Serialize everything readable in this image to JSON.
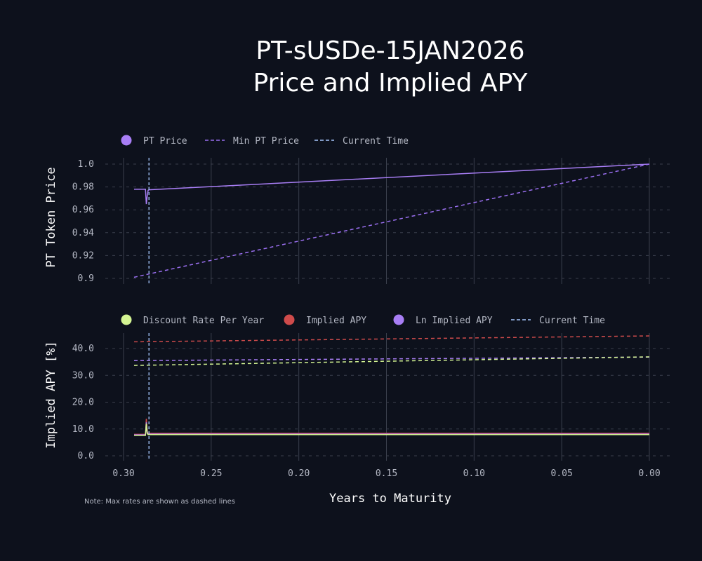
{
  "title_line1": "PT-sUSDe-15JAN2026",
  "title_line2": "Price and Implied APY",
  "note": "Note: Max rates are shown as dashed lines",
  "colors": {
    "background": "#0d111c",
    "pt_price": "#a87ef5",
    "min_pt_price": "#9a6ff0",
    "current_time": "#a8c8ff",
    "discount": "#d4f593",
    "implied": "#cf4b4b",
    "ln_implied": "#a87ef5",
    "grid": "#3a3f4c"
  },
  "chart_data": [
    {
      "type": "line",
      "ylabel": "PT Token Price",
      "xlim": [
        0.3,
        0.0
      ],
      "ylim": [
        0.9,
        1.0
      ],
      "x_ticks": [
        "0.30",
        "0.25",
        "0.20",
        "0.15",
        "0.10",
        "0.05",
        "0.00"
      ],
      "y_ticks": [
        "1.0",
        "0.98",
        "0.96",
        "0.94",
        "0.92",
        "0.9"
      ],
      "grid": true,
      "legend": [
        "PT Price",
        "Min PT Price",
        "Current Time"
      ],
      "legend_placement": "top-left",
      "current_time": 0.2855,
      "series": [
        {
          "name": "PT Price",
          "style": "solid",
          "x": [
            0.294,
            0.2875,
            0.287,
            0.2865,
            0.286,
            0.2855,
            0.0
          ],
          "y": [
            0.978,
            0.978,
            0.965,
            0.972,
            0.977,
            0.9775,
            1.0
          ]
        },
        {
          "name": "Min PT Price",
          "style": "dashed",
          "x": [
            0.294,
            0.0
          ],
          "y": [
            0.901,
            1.0
          ]
        }
      ]
    },
    {
      "type": "line",
      "ylabel": "Implied APY [%]",
      "xlabel": "Years to Maturity",
      "xlim": [
        0.3,
        0.0
      ],
      "ylim": [
        0,
        45
      ],
      "x_ticks": [
        "0.30",
        "0.25",
        "0.20",
        "0.15",
        "0.10",
        "0.05",
        "0.00"
      ],
      "y_ticks": [
        "40.0",
        "30.0",
        "20.0",
        "10.0",
        "0.0"
      ],
      "grid": true,
      "legend": [
        "Discount Rate Per Year",
        "Implied APY",
        "Ln Implied APY",
        "Current Time"
      ],
      "legend_placement": "top-left",
      "current_time": 0.2855,
      "series": [
        {
          "name": "Implied APY max",
          "style": "dashed",
          "color": "implied",
          "x": [
            0.294,
            0.0
          ],
          "y": [
            42.5,
            44.7
          ]
        },
        {
          "name": "Ln Implied APY max",
          "style": "dashed",
          "color": "ln_implied",
          "x": [
            0.294,
            0.0
          ],
          "y": [
            35.5,
            36.8
          ]
        },
        {
          "name": "Discount Rate Per Year max",
          "style": "dashed",
          "color": "discount",
          "x": [
            0.294,
            0.0
          ],
          "y": [
            33.7,
            36.9
          ]
        },
        {
          "name": "Implied APY",
          "style": "solid",
          "color": "implied",
          "x": [
            0.294,
            0.2875,
            0.287,
            0.2865,
            0.286,
            0.0
          ],
          "y": [
            8.0,
            8.0,
            13.8,
            9,
            8.4,
            8.4
          ]
        },
        {
          "name": "Ln Implied APY",
          "style": "solid",
          "color": "ln_implied",
          "x": [
            0.294,
            0.2875,
            0.287,
            0.2865,
            0.286,
            0.0
          ],
          "y": [
            7.8,
            7.8,
            12.5,
            8.6,
            8.1,
            8.1
          ]
        },
        {
          "name": "Discount Rate Per Year",
          "style": "solid",
          "color": "discount",
          "x": [
            0.294,
            0.2875,
            0.287,
            0.2865,
            0.286,
            0.0
          ],
          "y": [
            7.6,
            7.6,
            12,
            8.3,
            7.9,
            7.9
          ]
        }
      ]
    }
  ]
}
